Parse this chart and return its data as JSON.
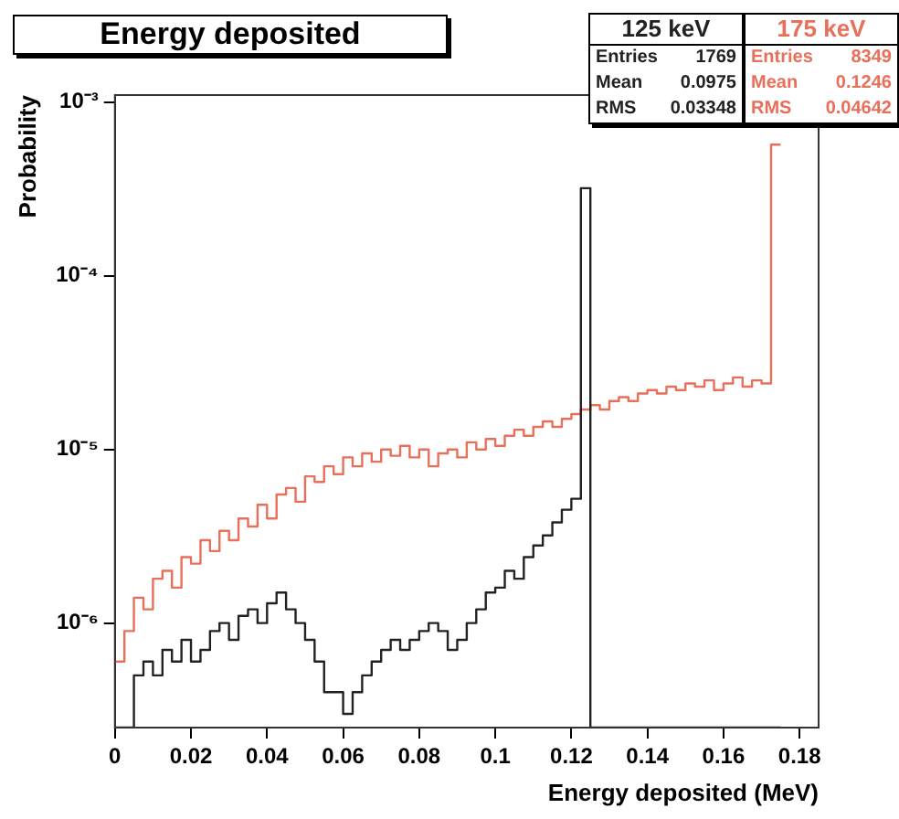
{
  "chart_data": {
    "type": "histogram",
    "title": "Energy deposited",
    "xlabel": "Energy deposited (MeV)",
    "ylabel": "Probability",
    "log": "y",
    "legend": "top right",
    "grid": false,
    "xlim": [
      0,
      0.185
    ],
    "xticks": [
      0,
      0.02,
      0.04,
      0.06,
      0.08,
      0.1,
      0.12,
      0.14,
      0.16,
      0.18
    ],
    "ylim": [
      2.5e-07,
      0.0011
    ],
    "yticks": [
      {
        "value": 1e-06,
        "label": "10⁻⁶"
      },
      {
        "value": 1e-05,
        "label": "10⁻⁵"
      },
      {
        "value": 0.0001,
        "label": "10⁻⁴"
      },
      {
        "value": 0.001,
        "label": "10⁻³"
      }
    ],
    "bins": [
      0,
      0.0025,
      0.005,
      0.0075,
      0.01,
      0.0125,
      0.015,
      0.0175,
      0.02,
      0.0225,
      0.025,
      0.0275,
      0.03,
      0.0325,
      0.035,
      0.0375,
      0.04,
      0.0425,
      0.045,
      0.0475,
      0.05,
      0.0525,
      0.055,
      0.0575,
      0.06,
      0.0625,
      0.065,
      0.0675,
      0.07,
      0.0725,
      0.075,
      0.0775,
      0.08,
      0.0825,
      0.085,
      0.0875,
      0.09,
      0.0925,
      0.095,
      0.0975,
      0.1,
      0.1025,
      0.105,
      0.1075,
      0.11,
      0.1125,
      0.115,
      0.1175,
      0.12,
      0.1225,
      0.125,
      0.1275,
      0.13,
      0.1325,
      0.135,
      0.1375,
      0.14,
      0.1425,
      0.145,
      0.1475,
      0.15,
      0.1525,
      0.155,
      0.1575,
      0.16,
      0.1625,
      0.165,
      0.1675,
      0.17,
      0.1725,
      0.175
    ],
    "series": [
      {
        "name": "125 keV",
        "color": "#222222",
        "values": [
          null,
          null,
          5e-07,
          6e-07,
          5e-07,
          7e-07,
          6e-07,
          8e-07,
          6e-07,
          7e-07,
          9e-07,
          1e-06,
          8e-07,
          1.1e-06,
          1.2e-06,
          1e-06,
          1.3e-06,
          1.5e-06,
          1.2e-06,
          1e-06,
          8e-07,
          6e-07,
          4e-07,
          4e-07,
          3e-07,
          4e-07,
          5e-07,
          6e-07,
          7e-07,
          8e-07,
          7e-07,
          8e-07,
          9e-07,
          1e-06,
          9e-07,
          7e-07,
          8e-07,
          1e-06,
          1.2e-06,
          1.5e-06,
          1.6e-06,
          2e-06,
          1.8e-06,
          2.4e-06,
          2.8e-06,
          3.2e-06,
          3.8e-06,
          4.5e-06,
          5.2e-06,
          0.00032,
          null,
          null,
          null,
          null,
          null,
          null,
          null,
          null,
          null,
          null,
          null,
          null,
          null,
          null,
          null,
          null,
          null,
          null,
          null,
          null
        ]
      },
      {
        "name": "175 keV",
        "color": "#e8705a",
        "values": [
          6e-07,
          9e-07,
          1.4e-06,
          1.2e-06,
          1.8e-06,
          2e-06,
          1.6e-06,
          2.4e-06,
          2.2e-06,
          3e-06,
          2.6e-06,
          3.4e-06,
          3e-06,
          4e-06,
          3.6e-06,
          4.8e-06,
          4e-06,
          5.5e-06,
          6e-06,
          5e-06,
          7e-06,
          6.5e-06,
          8e-06,
          7.2e-06,
          9e-06,
          8e-06,
          9.5e-06,
          8.5e-06,
          1e-05,
          9.2e-06,
          1.05e-05,
          9e-06,
          1e-05,
          8e-06,
          9.5e-06,
          1e-05,
          9e-06,
          1.1e-05,
          1e-05,
          1.15e-05,
          1.05e-05,
          1.2e-05,
          1.3e-05,
          1.2e-05,
          1.35e-05,
          1.45e-05,
          1.35e-05,
          1.5e-05,
          1.6e-05,
          1.7e-05,
          1.8e-05,
          1.7e-05,
          1.9e-05,
          2e-05,
          1.9e-05,
          2.1e-05,
          2.2e-05,
          2.1e-05,
          2.3e-05,
          2.2e-05,
          2.4e-05,
          2.3e-05,
          2.5e-05,
          2.2e-05,
          2.4e-05,
          2.6e-05,
          2.3e-05,
          2.5e-05,
          2.4e-05,
          0.00057
        ]
      }
    ],
    "annotations": [
      "Entries 1769",
      "Mean 0.0975",
      "RMS 0.03348",
      "Entries 8349",
      "Mean 0.1246",
      "RMS 0.04642"
    ]
  }
}
